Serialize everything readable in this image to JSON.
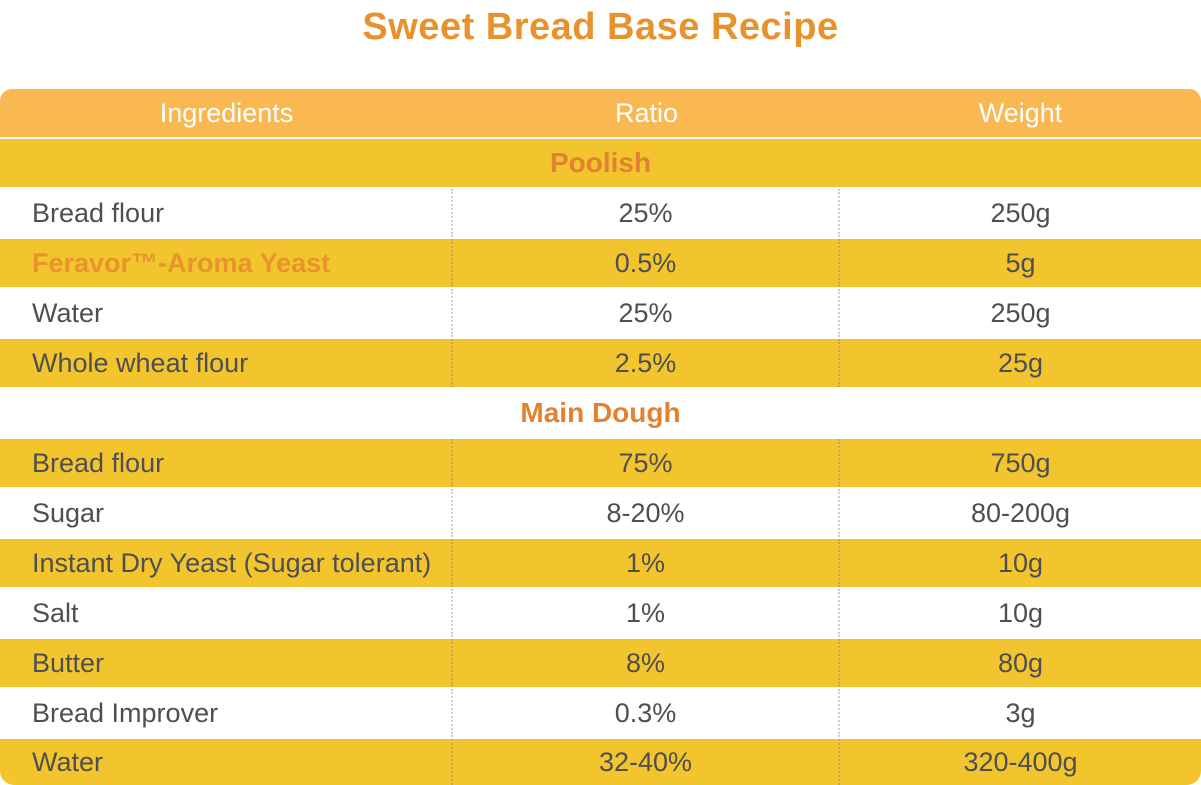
{
  "title": "Sweet Bread Base Recipe",
  "table": {
    "columns": [
      "Ingredients",
      "Ratio",
      "Weight"
    ],
    "sections": [
      {
        "name": "Poolish",
        "rows": [
          {
            "ingredient": "Bread flour",
            "ratio": "25%",
            "weight": "250g",
            "highlight": false
          },
          {
            "ingredient": "Feravor™-Aroma Yeast",
            "ratio": "0.5%",
            "weight": "5g",
            "highlight": true
          },
          {
            "ingredient": "Water",
            "ratio": "25%",
            "weight": "250g",
            "highlight": false
          },
          {
            "ingredient": "Whole wheat flour",
            "ratio": "2.5%",
            "weight": "25g",
            "highlight": false
          }
        ]
      },
      {
        "name": "Main Dough",
        "rows": [
          {
            "ingredient": "Bread flour",
            "ratio": "75%",
            "weight": "750g",
            "highlight": false
          },
          {
            "ingredient": "Sugar",
            "ratio": "8-20%",
            "weight": "80-200g",
            "highlight": false
          },
          {
            "ingredient": "Instant Dry Yeast (Sugar tolerant)",
            "ratio": "1%",
            "weight": "10g",
            "highlight": false
          },
          {
            "ingredient": "Salt",
            "ratio": "1%",
            "weight": "10g",
            "highlight": false
          },
          {
            "ingredient": "Butter",
            "ratio": "8%",
            "weight": "80g",
            "highlight": false
          },
          {
            "ingredient": "Bread Improver",
            "ratio": "0.3%",
            "weight": "3g",
            "highlight": false
          },
          {
            "ingredient": "Water",
            "ratio": "32-40%",
            "weight": "320-400g",
            "highlight": false
          }
        ]
      }
    ]
  },
  "colors": {
    "title_orange": "#E8922D",
    "section_orange": "#E28130",
    "highlight_orange": "#E8932C",
    "header_bg": "#F9B851",
    "header_text": "#FFFFFF",
    "row_yellow": "#F2C52F",
    "row_white": "#FFFFFF",
    "body_text": "#4F4F4F"
  }
}
